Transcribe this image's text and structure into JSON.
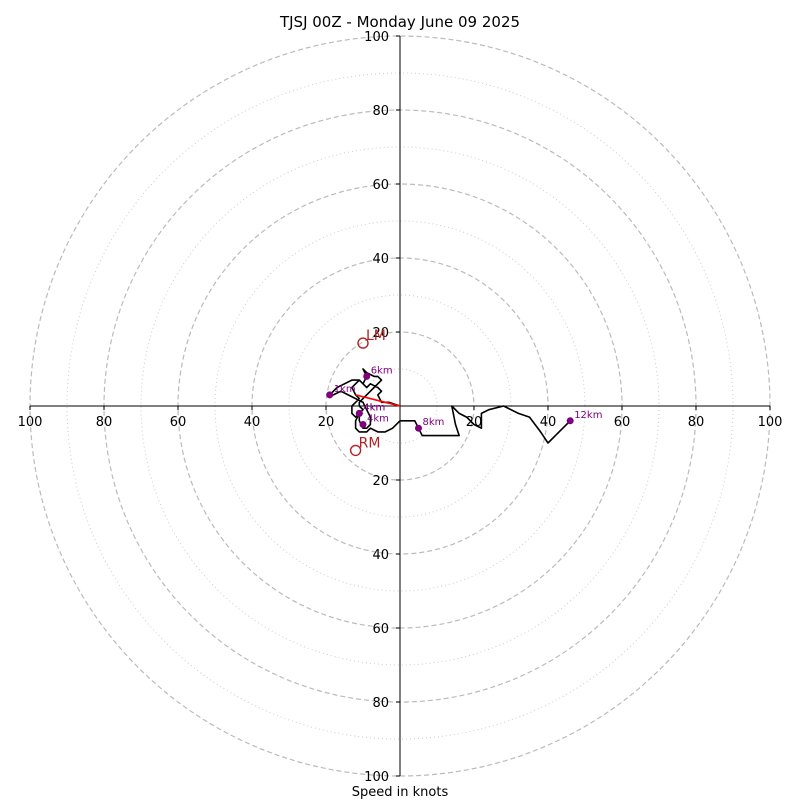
{
  "chart_data": {
    "type": "scatter",
    "subtype": "hodograph",
    "title": "TJSJ 00Z - Monday June 09 2025",
    "xlabel": "Speed in knots",
    "ylabel": "",
    "xlim": [
      -100,
      100
    ],
    "ylim": [
      -100,
      100
    ],
    "ring_major": [
      20,
      40,
      60,
      80,
      100
    ],
    "ring_minor": [
      10,
      30,
      50,
      70,
      90
    ],
    "x_tick_labels": [
      "100",
      "80",
      "60",
      "40",
      "20",
      "20",
      "40",
      "60",
      "80",
      "100"
    ],
    "x_tick_values": [
      -100,
      -80,
      -60,
      -40,
      -20,
      20,
      40,
      60,
      80,
      100
    ],
    "y_tick_labels": [
      "100",
      "80",
      "60",
      "40",
      "20",
      "20",
      "40",
      "60",
      "80",
      "100"
    ],
    "y_tick_values": [
      100,
      80,
      60,
      40,
      20,
      -20,
      -40,
      -60,
      -80,
      -100
    ],
    "grid": true,
    "colors": {
      "trace": "#000000",
      "height_marker": "#800080",
      "storm_motion": "#b22222",
      "shear_vector": "#ff0000",
      "grid": "#bbbbbb"
    },
    "series": [
      {
        "values": [
          [
            0,
            0
          ],
          [
            -3,
            1
          ],
          [
            -5,
            1
          ],
          [
            -6,
            3
          ],
          [
            -5,
            4
          ],
          [
            -6,
            5
          ],
          [
            -8,
            6
          ],
          [
            -9,
            5
          ],
          [
            -10,
            6
          ],
          [
            -11,
            7
          ],
          [
            -12,
            6
          ],
          [
            -13,
            5
          ],
          [
            -12,
            3
          ],
          [
            -11,
            2
          ],
          [
            -12,
            1
          ],
          [
            -13,
            0
          ],
          [
            -13,
            -2
          ],
          [
            -12,
            -3
          ],
          [
            -11,
            -2
          ],
          [
            -11,
            -4
          ],
          [
            -10,
            -6
          ],
          [
            -9,
            -6
          ],
          [
            -8,
            -5
          ],
          [
            -8,
            -3
          ],
          [
            -9,
            -1
          ],
          [
            -10,
            1
          ],
          [
            -12,
            2
          ],
          [
            -14,
            3
          ],
          [
            -16,
            4
          ],
          [
            -18,
            3
          ],
          [
            -19,
            3
          ],
          [
            -18,
            4
          ],
          [
            -17,
            5
          ],
          [
            -15,
            6
          ],
          [
            -13,
            7
          ],
          [
            -11,
            7
          ],
          [
            -10,
            6
          ],
          [
            -9,
            8
          ],
          [
            -10,
            10
          ],
          [
            -9,
            9
          ],
          [
            -7,
            8
          ],
          [
            -6,
            8
          ],
          [
            -5,
            7
          ],
          [
            -6,
            6
          ],
          [
            -7,
            5
          ],
          [
            -8,
            4
          ],
          [
            -10,
            2
          ],
          [
            -11,
            1
          ],
          [
            -11,
            0
          ],
          [
            -10,
            -1
          ],
          [
            -11,
            -2
          ],
          [
            -12,
            -4
          ],
          [
            -12,
            -6
          ],
          [
            -11,
            -7
          ],
          [
            -10,
            -7
          ],
          [
            -9,
            -7
          ],
          [
            -8,
            -6
          ],
          [
            -6,
            -7
          ],
          [
            -4,
            -7
          ],
          [
            -2,
            -6
          ],
          [
            0,
            -4
          ],
          [
            2,
            -4
          ],
          [
            4,
            -4
          ],
          [
            5,
            -6
          ],
          [
            6,
            -8
          ],
          [
            9,
            -8
          ],
          [
            12,
            -8
          ],
          [
            16,
            -8
          ],
          [
            15,
            -5
          ],
          [
            14,
            0
          ],
          [
            16,
            -2
          ],
          [
            18,
            -3
          ],
          [
            20,
            -5
          ],
          [
            22,
            -6
          ],
          [
            22,
            -2
          ],
          [
            24,
            -1
          ],
          [
            28,
            0
          ],
          [
            30,
            -1
          ],
          [
            32,
            -2
          ],
          [
            35,
            -3
          ],
          [
            38,
            -7
          ],
          [
            40,
            -10
          ],
          [
            42,
            -8
          ],
          [
            44,
            -6
          ],
          [
            46,
            -4
          ]
        ]
      }
    ],
    "height_markers": [
      {
        "label": "1km",
        "x": -19,
        "y": 3
      },
      {
        "label": "4km",
        "x": -11,
        "y": -2
      },
      {
        "label": "4km",
        "x": -11,
        "y": -2
      },
      {
        "label": "4km",
        "x": -10,
        "y": -5
      },
      {
        "label": "6km",
        "x": -9,
        "y": 8
      },
      {
        "label": "8km",
        "x": 5,
        "y": -6
      },
      {
        "label": "12km",
        "x": 46,
        "y": -4
      }
    ],
    "storm_motion": [
      {
        "label": "LM",
        "x": -10,
        "y": 17
      },
      {
        "label": "RM",
        "x": -12,
        "y": -12
      }
    ],
    "shear_vector": {
      "from": [
        -12,
        3
      ],
      "to": [
        0,
        0
      ]
    }
  }
}
